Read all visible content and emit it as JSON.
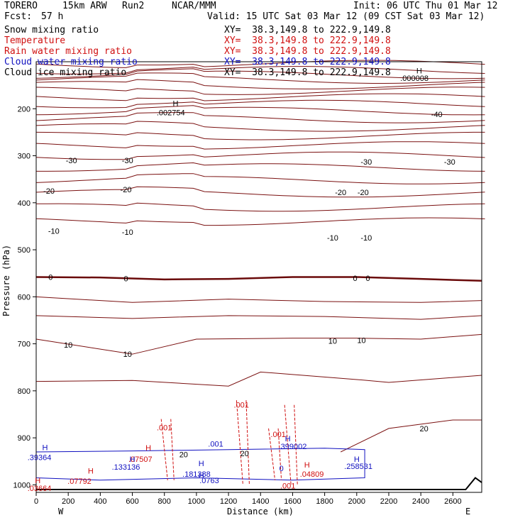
{
  "header": {
    "model": "TORERO",
    "resolution": "15km ARW",
    "run": "Run2",
    "org": "NCAR/MMM",
    "init": "Init: 06 UTC Thu 01 Mar 12",
    "fcst_label": "Fcst:",
    "fcst_hours": "57 h",
    "valid": "Valid: 15 UTC Sat 03 Mar 12 (09 CST Sat 03 Mar 12)"
  },
  "fields": [
    {
      "name": "Snow mixing ratio",
      "xy": "XY=  38.3,149.8 to 222.9,149.8",
      "color": "#000000"
    },
    {
      "name": "Temperature",
      "xy": "XY=  38.3,149.8 to 222.9,149.8",
      "color": "#d01010"
    },
    {
      "name": "Rain water mixing ratio",
      "xy": "XY=  38.3,149.8 to 222.9,149.8",
      "color": "#d01010"
    },
    {
      "name": "Cloud water mixing ratio",
      "xy": "XY=  38.3,149.8 to 222.9,149.8",
      "color": "#1010c0"
    },
    {
      "name": "Cloud ice mixing ratio",
      "xy": "XY=  38.3,149.8 to 222.9,149.8",
      "color": "#000000"
    }
  ],
  "chart_data": {
    "type": "cross-section contour",
    "xlabel": "Distance (km)",
    "ylabel": "Pressure (hPa)",
    "xlim": [
      0,
      2780
    ],
    "ylim": [
      1000,
      100
    ],
    "x_ticks": [
      0,
      200,
      400,
      600,
      800,
      1000,
      1200,
      1400,
      1600,
      1800,
      2000,
      2200,
      2400,
      2600
    ],
    "y_ticks": [
      200,
      300,
      400,
      500,
      600,
      700,
      800,
      900,
      1000
    ],
    "ends": {
      "left": "W",
      "right": "E"
    },
    "temperature_isotherms_C": [
      -40,
      -30,
      -20,
      -10,
      0,
      10,
      20
    ],
    "temperature_labels": [
      {
        "text": "-40",
        "x": 2500,
        "p": 212
      },
      {
        "text": "-30",
        "x": 220,
        "p": 310
      },
      {
        "text": "-30",
        "x": 570,
        "p": 310
      },
      {
        "text": "-30",
        "x": 2060,
        "p": 313
      },
      {
        "text": "-30",
        "x": 2580,
        "p": 313
      },
      {
        "text": "-20",
        "x": 80,
        "p": 375
      },
      {
        "text": "-20",
        "x": 560,
        "p": 372
      },
      {
        "text": "-20",
        "x": 1900,
        "p": 378
      },
      {
        "text": "-20",
        "x": 2040,
        "p": 378
      },
      {
        "text": "-10",
        "x": 110,
        "p": 460
      },
      {
        "text": "-10",
        "x": 570,
        "p": 462
      },
      {
        "text": "-10",
        "x": 1850,
        "p": 474
      },
      {
        "text": "-10",
        "x": 2060,
        "p": 474
      },
      {
        "text": "0",
        "x": 90,
        "p": 558
      },
      {
        "text": "0",
        "x": 560,
        "p": 561
      },
      {
        "text": "0",
        "x": 1990,
        "p": 560
      },
      {
        "text": "0",
        "x": 2070,
        "p": 560
      },
      {
        "text": "10",
        "x": 200,
        "p": 702
      },
      {
        "text": "10",
        "x": 570,
        "p": 722
      },
      {
        "text": "10",
        "x": 1850,
        "p": 694
      },
      {
        "text": "10",
        "x": 2030,
        "p": 692
      },
      {
        "text": "20",
        "x": 2420,
        "p": 880
      },
      {
        "text": "20",
        "x": 920,
        "p": 935
      },
      {
        "text": "20",
        "x": 1300,
        "p": 933
      }
    ],
    "rain_labels": [
      {
        "text": ".001",
        "x": 1280,
        "p": 830
      },
      {
        "text": ".001",
        "x": 800,
        "p": 878
      },
      {
        "text": ".001",
        "x": 1510,
        "p": 892
      },
      {
        "text": ".001",
        "x": 1570,
        "p": 1002
      },
      {
        "text": ".07507",
        "x": 650,
        "p": 945
      },
      {
        "text": ".07792",
        "x": 270,
        "p": 992
      },
      {
        "text": ".04809",
        "x": 1720,
        "p": 977
      },
      {
        "text": ".03664",
        "x": 20,
        "p": 1007
      },
      {
        "text": "H",
        "x": 700,
        "p": 921
      },
      {
        "text": "H",
        "x": 340,
        "p": 970
      },
      {
        "text": "H",
        "x": 1690,
        "p": 957
      },
      {
        "text": "H",
        "x": 10,
        "p": 990
      }
    ],
    "cloud_water_labels": [
      {
        "text": ".39364",
        "x": 20,
        "p": 941
      },
      {
        "text": ".001",
        "x": 1120,
        "p": 913
      },
      {
        "text": ".399002",
        "x": 1600,
        "p": 918
      },
      {
        "text": ".133136",
        "x": 560,
        "p": 962
      },
      {
        "text": ".181388",
        "x": 1000,
        "p": 977
      },
      {
        "text": ".0763",
        "x": 1080,
        "p": 990
      },
      {
        "text": ".258531",
        "x": 2010,
        "p": 960
      },
      {
        "text": "H",
        "x": 55,
        "p": 920
      },
      {
        "text": "H",
        "x": 1570,
        "p": 901
      },
      {
        "text": "H",
        "x": 600,
        "p": 945
      },
      {
        "text": "H",
        "x": 1030,
        "p": 954
      },
      {
        "text": "H",
        "x": 1030,
        "p": 980
      },
      {
        "text": "H",
        "x": 2000,
        "p": 945
      },
      {
        "text": "0",
        "x": 1530,
        "p": 965
      }
    ],
    "ice_labels": [
      {
        "text": "H",
        "x": 870,
        "p": 188
      },
      {
        "text": ".002754",
        "x": 840,
        "p": 208
      },
      {
        "text": "H",
        "x": 2390,
        "p": 119
      },
      {
        "text": ".000008",
        "x": 2360,
        "p": 135
      }
    ]
  }
}
